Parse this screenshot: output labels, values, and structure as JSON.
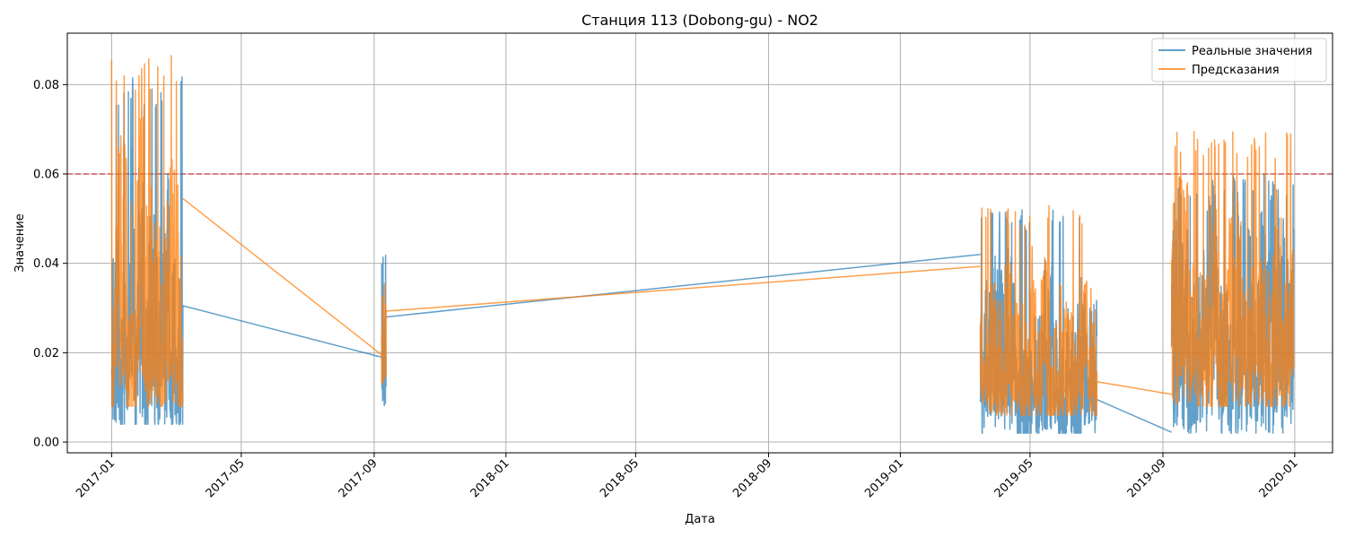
{
  "chart_data": {
    "type": "line",
    "title": "Станция 113 (Dobong-gu) - NO2",
    "xlabel": "Дата",
    "ylabel": "Значение",
    "x_tick_labels": [
      "2017-01",
      "2017-05",
      "2017-09",
      "2018-01",
      "2018-05",
      "2018-09",
      "2019-01",
      "2019-05",
      "2019-09",
      "2020-01"
    ],
    "x_tick_dates": [
      "2017-01-01",
      "2017-05-01",
      "2017-09-01",
      "2018-01-01",
      "2018-05-01",
      "2018-09-01",
      "2019-01-01",
      "2019-05-01",
      "2019-09-01",
      "2020-01-01"
    ],
    "x_range": [
      "2016-11-21",
      "2020-02-05"
    ],
    "y_tick_labels": [
      "0.00",
      "0.02",
      "0.04",
      "0.06",
      "0.08"
    ],
    "y_ticks": [
      0.0,
      0.02,
      0.04,
      0.06,
      0.08
    ],
    "ylim": [
      -0.0024,
      0.0915
    ],
    "grid": true,
    "legend_position": "top-right",
    "threshold": {
      "value": 0.06,
      "color": "#d62728",
      "style": "dashed"
    },
    "segments": [
      {
        "start": "2017-01-01",
        "end": "2017-03-08"
      },
      {
        "start": "2017-09-08",
        "end": "2017-09-12"
      },
      {
        "start": "2019-03-16",
        "end": "2019-07-02"
      },
      {
        "start": "2019-09-09",
        "end": "2019-12-31"
      }
    ],
    "series": [
      {
        "name": "Реальные значения",
        "color": "#1f77b4",
        "opacity": 0.7,
        "gap_connectors": [
          {
            "x": [
              "2017-03-08",
              "2017-09-08"
            ],
            "y": [
              0.0305,
              0.019
            ]
          },
          {
            "x": [
              "2017-09-12",
              "2019-03-16"
            ],
            "y": [
              0.028,
              0.042
            ]
          },
          {
            "x": [
              "2019-07-02",
              "2019-09-09"
            ],
            "y": [
              0.0095,
              0.0022
            ]
          }
        ],
        "segment_stats": [
          {
            "min": 0.004,
            "mean": 0.026,
            "max": 0.082
          },
          {
            "min": 0.008,
            "mean": 0.022,
            "max": 0.043
          },
          {
            "min": 0.002,
            "mean": 0.018,
            "max": 0.052
          },
          {
            "min": 0.002,
            "mean": 0.024,
            "max": 0.06
          }
        ]
      },
      {
        "name": "Предсказания",
        "color": "#ff7f0e",
        "opacity": 0.75,
        "gap_connectors": [
          {
            "x": [
              "2017-03-08",
              "2017-09-08"
            ],
            "y": [
              0.0545,
              0.0195
            ]
          },
          {
            "x": [
              "2017-09-12",
              "2019-03-16"
            ],
            "y": [
              0.0293,
              0.0393
            ]
          },
          {
            "x": [
              "2019-07-02",
              "2019-09-09"
            ],
            "y": [
              0.0135,
              0.0107
            ]
          }
        ],
        "segment_stats": [
          {
            "min": 0.008,
            "mean": 0.03,
            "max": 0.087
          },
          {
            "min": 0.013,
            "mean": 0.026,
            "max": 0.044
          },
          {
            "min": 0.006,
            "mean": 0.023,
            "max": 0.053
          },
          {
            "min": 0.008,
            "mean": 0.028,
            "max": 0.0695
          }
        ]
      }
    ]
  }
}
